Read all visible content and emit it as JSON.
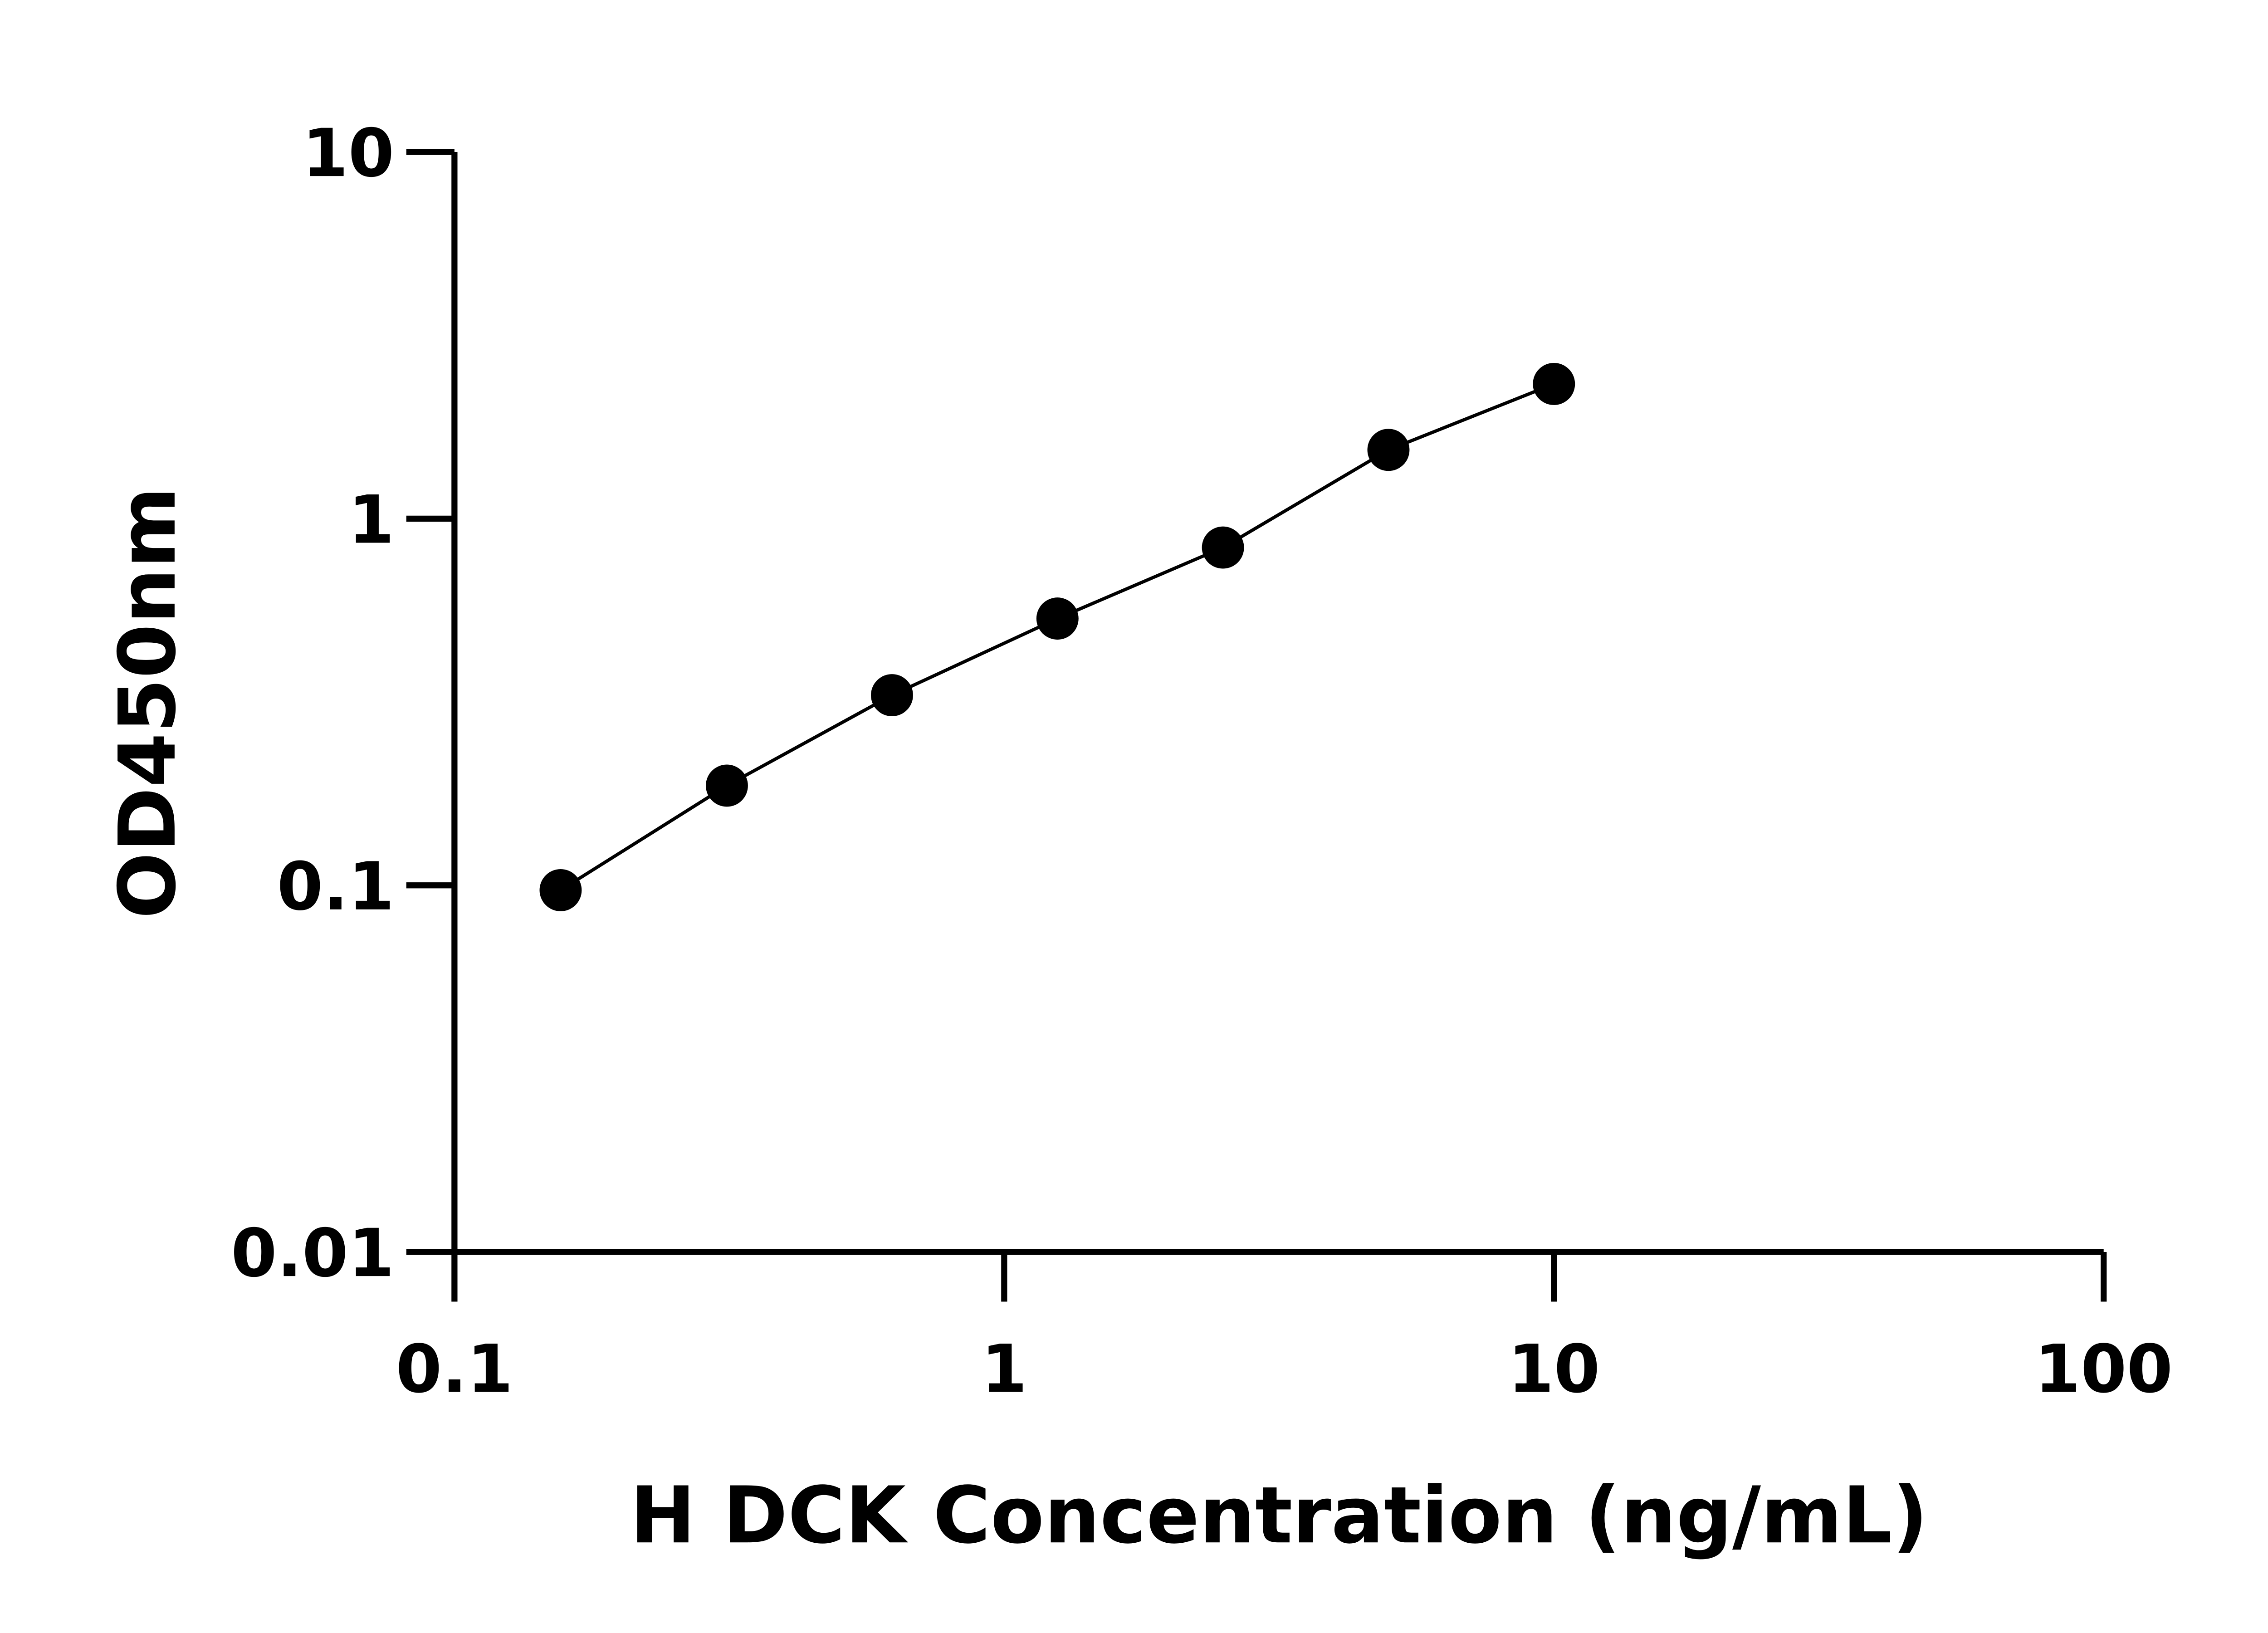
{
  "chart_data": {
    "type": "scatter",
    "title": "",
    "xlabel": "H DCK Concentration (ng/mL)",
    "ylabel": "OD450nm",
    "x_scale": "log",
    "y_scale": "log",
    "xlim": [
      0.1,
      100
    ],
    "ylim": [
      0.01,
      10
    ],
    "x_ticks": [
      0.1,
      1,
      10,
      100
    ],
    "x_tick_labels": [
      "0.1",
      "1",
      "10",
      "100"
    ],
    "y_ticks": [
      0.01,
      0.1,
      1,
      10
    ],
    "y_tick_labels": [
      "0.01",
      "0.1",
      "1",
      "10"
    ],
    "grid": false,
    "legend": "none",
    "series": [
      {
        "x": [
          0.156,
          0.313,
          0.625,
          1.25,
          2.5,
          5,
          10
        ],
        "y": [
          0.097,
          0.187,
          0.33,
          0.534,
          0.834,
          1.54,
          2.33
        ],
        "marker": "circle",
        "line": "fitted curve",
        "color": "#000000"
      }
    ]
  }
}
